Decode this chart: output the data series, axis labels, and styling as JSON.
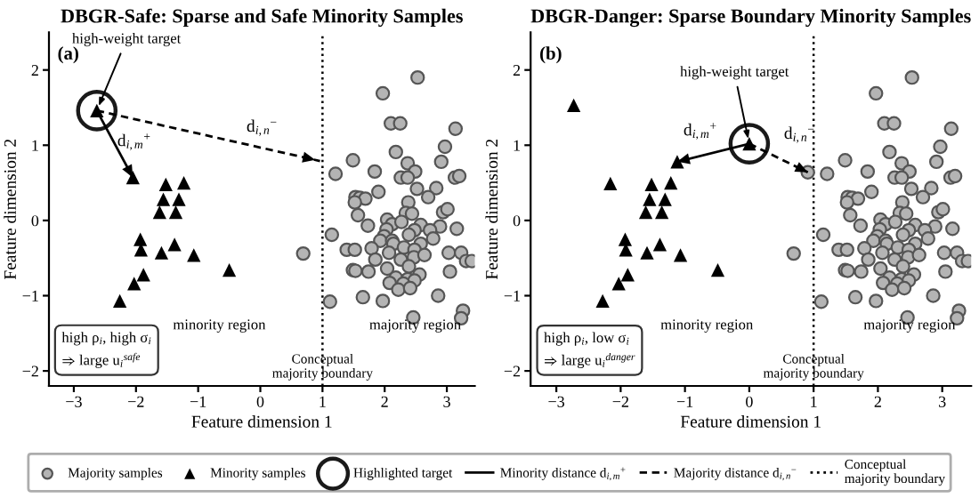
{
  "chart_data": [
    {
      "type": "scatter",
      "title": "DBGR-Safe: Sparse and Safe Minority Samples",
      "xlabel": "Feature dimension 1",
      "ylabel": "Feature dimension 2",
      "xlim": [
        -3.4,
        3.45
      ],
      "ylim": [
        -2.2,
        2.5
      ],
      "xticks": [
        -3,
        -2,
        -1,
        0,
        1,
        2,
        3
      ],
      "yticks": [
        -2,
        -1,
        0,
        1,
        2
      ],
      "grid": false,
      "legend": "bottom",
      "series": [
        {
          "name": "Majority samples",
          "type": "scatter",
          "marker": "circle",
          "color": "#b4b4b4",
          "x": [
            2.53,
            1.97,
            2.1,
            2.25,
            3.14,
            2.18,
            2.97,
            1.49,
            2.37,
            2.91,
            1.21,
            1.84,
            2.49,
            2.26,
            2.37,
            3.13,
            3.2,
            2.52,
            2.83,
            1.53,
            1.6,
            1.69,
            1.52,
            1.9,
            2.38,
            2.7,
            1.57,
            2.94,
            3.01,
            2.34,
            2.44,
            2.04,
            2.12,
            1.73,
            2.27,
            2.58,
            2.89,
            3.16,
            1.15,
            2.03,
            2.48,
            2.73,
            1.99,
            2.39,
            1.93,
            2.12,
            2.14,
            2.58,
            2.78,
            1.39,
            1.52,
            1.79,
            2.31,
            2.48,
            0.69,
            2.07,
            3.03,
            3.23,
            1.85,
            2.26,
            2.47,
            2.64,
            3.31,
            3.4,
            2.04,
            2.39,
            1.49,
            1.53,
            1.74,
            2.56,
            3.05,
            2.18,
            2.37,
            2.48,
            2.08,
            2.3,
            2.22,
            2.41,
            1.65,
            2.86,
            1.97,
            1.12,
            3.26,
            3.23,
            2.46
          ],
          "values": [
            1.9,
            1.69,
            1.29,
            1.29,
            1.22,
            0.91,
            0.98,
            0.8,
            0.76,
            0.78,
            0.62,
            0.65,
            0.65,
            0.57,
            0.57,
            0.57,
            0.59,
            0.42,
            0.43,
            0.31,
            0.3,
            0.29,
            0.24,
            0.38,
            0.24,
            0.31,
            0.07,
            0.11,
            0.15,
            0.1,
            0.09,
            0.01,
            -0.05,
            -0.07,
            -0.02,
            -0.06,
            -0.08,
            -0.11,
            -0.19,
            -0.12,
            -0.13,
            -0.13,
            -0.21,
            -0.19,
            -0.27,
            -0.27,
            -0.31,
            -0.31,
            -0.24,
            -0.39,
            -0.39,
            -0.37,
            -0.36,
            -0.39,
            -0.44,
            -0.43,
            -0.43,
            -0.43,
            -0.52,
            -0.52,
            -0.49,
            -0.46,
            -0.54,
            -0.54,
            -0.64,
            -0.61,
            -0.66,
            -0.67,
            -0.68,
            -0.72,
            -0.68,
            -0.76,
            -0.78,
            -0.8,
            -0.83,
            -0.84,
            -0.92,
            -0.9,
            -1.02,
            -1.0,
            -1.07,
            -1.08,
            -1.2,
            -1.3,
            -1.29
          ]
        },
        {
          "name": "Minority samples",
          "type": "scatter",
          "marker": "triangle",
          "color": "#000000",
          "x": [
            -2.63,
            -2.05,
            -1.52,
            -1.23,
            -1.56,
            -1.31,
            -1.62,
            -1.36,
            -1.93,
            -1.92,
            -1.38,
            -1.59,
            -1.07,
            -0.5,
            -1.88,
            -2.03,
            -2.26
          ],
          "values": [
            1.46,
            0.57,
            0.48,
            0.5,
            0.28,
            0.28,
            0.11,
            0.11,
            -0.25,
            -0.39,
            -0.32,
            -0.43,
            -0.46,
            -0.66,
            -0.72,
            -0.84,
            -1.07
          ]
        },
        {
          "name": "Highlighted target",
          "type": "scatter",
          "marker": "circle",
          "color": "#1a1a1a",
          "x": [
            -2.63
          ],
          "values": [
            1.46
          ]
        },
        {
          "name": "Minority distance d$_{i,m}$$^{+}$",
          "type": "line",
          "line_style": "solid",
          "color": "#000000",
          "x": [
            -2.63,
            -2.05
          ],
          "values": [
            1.46,
            0.57
          ]
        },
        {
          "name": "Majority distance d$_{i,n}$$^{−}$",
          "type": "line",
          "line_style": "dashed",
          "color": "#000000",
          "x": [
            -2.63,
            0.96
          ],
          "values": [
            1.46,
            0.79
          ]
        }
      ],
      "ref_lines": [
        {
          "axis": "x",
          "value": 1,
          "label": "Conceptual\nmajority boundary",
          "color": "#000000",
          "line_style": "dotted"
        }
      ],
      "annotations": [
        "(a)",
        "minority region",
        "majority region",
        "high ρ$_{i}$, high σ$_{i}$\n⇒ large u$_{i}$$^{safe}$",
        {
          "text": "high-weight target",
          "x": -2.63,
          "y": 1.46
        },
        "d$_{i,m}$$^{+}$",
        "d$_{i,n}$$^{−}$"
      ]
    },
    {
      "type": "scatter",
      "title": "DBGR-Danger: Sparse Boundary Minority Samples",
      "xlabel": "Feature dimension 1",
      "ylabel": "Feature dimension 2",
      "xlim": [
        -3.4,
        3.45
      ],
      "ylim": [
        -2.2,
        2.5
      ],
      "xticks": [
        -3,
        -2,
        -1,
        0,
        1,
        2,
        3
      ],
      "yticks": [
        -2,
        -1,
        0,
        1,
        2
      ],
      "grid": false,
      "series": [
        {
          "type": "scatter",
          "marker": "circle",
          "color": "#b4b4b4",
          "x": [
            0.91,
            2.53,
            1.97,
            2.1,
            2.25,
            3.14,
            2.18,
            2.97,
            1.49,
            2.37,
            2.91,
            1.21,
            1.84,
            2.49,
            2.26,
            2.37,
            3.13,
            3.2,
            2.52,
            2.83,
            1.53,
            1.6,
            1.69,
            1.52,
            1.9,
            2.38,
            2.7,
            1.57,
            2.94,
            3.01,
            2.34,
            2.44,
            2.04,
            2.12,
            1.73,
            2.27,
            2.58,
            2.89,
            3.16,
            1.15,
            2.03,
            2.48,
            2.73,
            1.99,
            2.39,
            1.93,
            2.12,
            2.14,
            2.58,
            2.78,
            1.39,
            1.52,
            1.79,
            2.31,
            2.48,
            0.69,
            2.07,
            3.03,
            3.23,
            1.85,
            2.26,
            2.47,
            2.64,
            3.31,
            3.4,
            2.04,
            2.39,
            1.49,
            1.53,
            1.74,
            2.56,
            3.05,
            2.18,
            2.37,
            2.48,
            2.08,
            2.3,
            2.22,
            2.41,
            1.65,
            2.86,
            1.97,
            1.12,
            3.26,
            3.23,
            2.46
          ],
          "values": [
            0.64,
            1.9,
            1.69,
            1.29,
            1.29,
            1.22,
            0.91,
            0.98,
            0.8,
            0.76,
            0.78,
            0.62,
            0.65,
            0.65,
            0.57,
            0.57,
            0.57,
            0.59,
            0.42,
            0.43,
            0.31,
            0.3,
            0.29,
            0.24,
            0.38,
            0.24,
            0.31,
            0.07,
            0.11,
            0.15,
            0.1,
            0.09,
            0.01,
            -0.05,
            -0.07,
            -0.02,
            -0.06,
            -0.08,
            -0.11,
            -0.19,
            -0.12,
            -0.13,
            -0.13,
            -0.21,
            -0.19,
            -0.27,
            -0.27,
            -0.31,
            -0.31,
            -0.24,
            -0.39,
            -0.39,
            -0.37,
            -0.36,
            -0.39,
            -0.44,
            -0.43,
            -0.43,
            -0.43,
            -0.52,
            -0.52,
            -0.49,
            -0.46,
            -0.54,
            -0.54,
            -0.64,
            -0.61,
            -0.66,
            -0.67,
            -0.68,
            -0.72,
            -0.68,
            -0.76,
            -0.78,
            -0.8,
            -0.83,
            -0.84,
            -0.92,
            -0.9,
            -1.02,
            -1.0,
            -1.07,
            -1.08,
            -1.2,
            -1.3,
            -1.29
          ]
        },
        {
          "type": "scatter",
          "marker": "triangle",
          "color": "#000000",
          "x": [
            -2.73,
            0.0,
            -1.12,
            -2.16,
            -1.52,
            -1.22,
            -1.55,
            -1.31,
            -1.61,
            -1.36,
            -1.93,
            -1.92,
            -1.39,
            -1.59,
            -1.07,
            -0.49,
            -1.89,
            -2.03,
            -2.28
          ],
          "values": [
            1.53,
            1.02,
            0.78,
            0.49,
            0.48,
            0.5,
            0.28,
            0.28,
            0.11,
            0.11,
            -0.25,
            -0.39,
            -0.32,
            -0.43,
            -0.46,
            -0.66,
            -0.72,
            -0.84,
            -1.07
          ]
        },
        {
          "type": "scatter",
          "marker": "circle",
          "color": "#1a1a1a",
          "x": [
            0.0
          ],
          "values": [
            1.02
          ]
        },
        {
          "type": "line",
          "line_style": "solid",
          "color": "#000000",
          "x": [
            0.0,
            -1.12
          ],
          "values": [
            1.02,
            0.78
          ]
        },
        {
          "type": "line",
          "line_style": "dashed",
          "color": "#000000",
          "x": [
            0.0,
            0.91
          ],
          "values": [
            1.02,
            0.64
          ]
        }
      ],
      "ref_lines": [
        {
          "axis": "x",
          "value": 1,
          "label": "Conceptual\nmajority boundary",
          "color": "#000000",
          "line_style": "dotted"
        }
      ],
      "annotations": [
        "(b)",
        "minority region",
        "majority region",
        "high ρ$_{i}$, low σ$_{i}$\n⇒ large u$_{i}$$^{danger}$",
        {
          "text": "high-weight target",
          "x": 0.0,
          "y": 1.02
        },
        "d$_{i,m}$$^{+}$",
        "d$_{i,n}$$^{−}$"
      ]
    }
  ]
}
